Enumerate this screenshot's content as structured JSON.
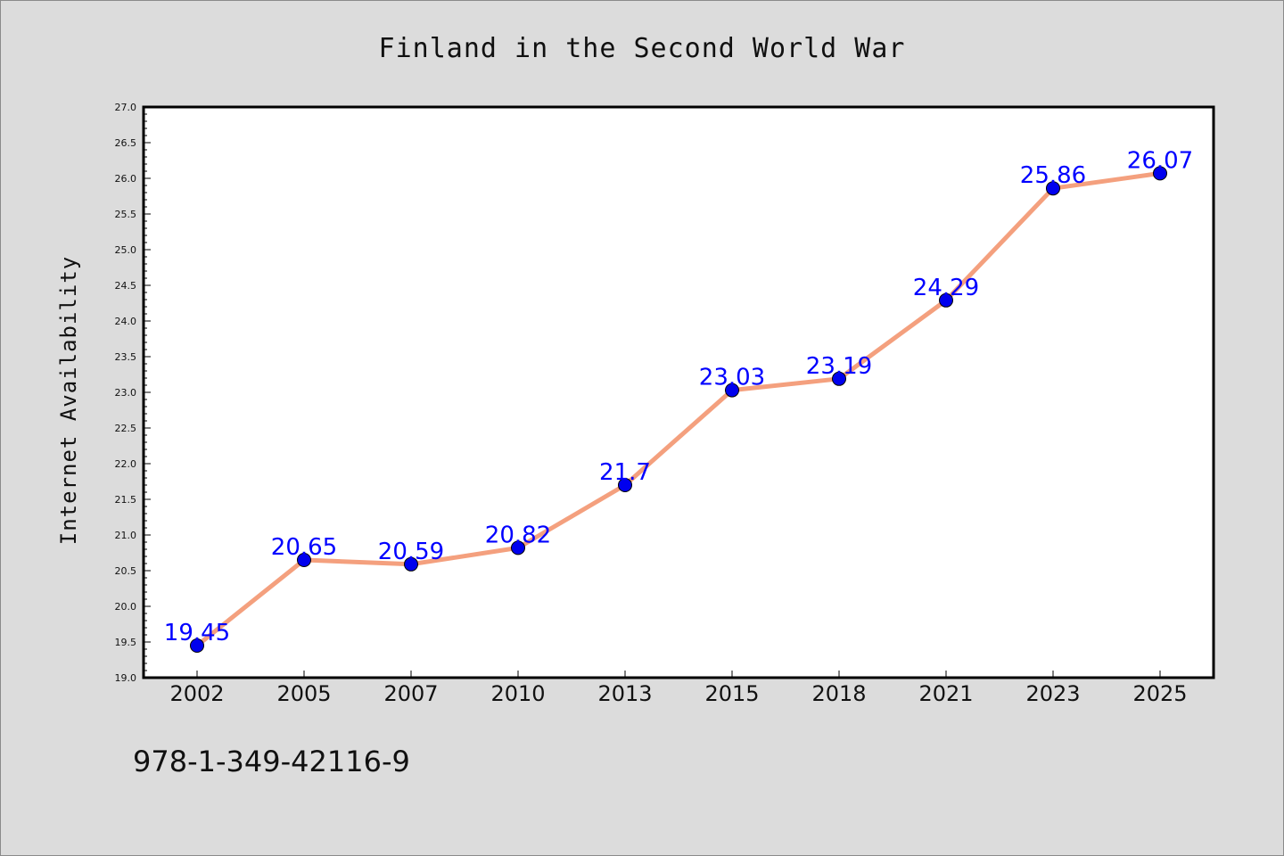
{
  "chart_data": {
    "type": "line",
    "title": "Finland in the Second World War",
    "xlabel": "",
    "ylabel": "Internet Availability",
    "categories": [
      "2002",
      "2005",
      "2007",
      "2010",
      "2013",
      "2015",
      "2018",
      "2021",
      "2023",
      "2025"
    ],
    "series": [
      {
        "values": [
          19.45,
          20.65,
          20.59,
          20.82,
          21.7,
          23.03,
          23.19,
          24.29,
          25.86,
          26.07
        ],
        "labels": [
          "19.45",
          "20.65",
          "20.59",
          "20.82",
          "21.7",
          "23.03",
          "23.19",
          "24.29",
          "25.86",
          "26.07"
        ],
        "line_color": "#f4a07e",
        "marker_color": "#0000ee",
        "label_color": "#0000ff"
      }
    ],
    "ylim": [
      19.0,
      27.0
    ],
    "yticks": [
      "19.0",
      "19.5",
      "20.0",
      "20.5",
      "21.0",
      "21.5",
      "22.0",
      "22.5",
      "23.0",
      "23.5",
      "24.0",
      "24.5",
      "25.0",
      "25.5",
      "26.0",
      "26.5",
      "27.0"
    ],
    "grid": false,
    "legend": "none"
  },
  "footer": {
    "isbn": "978-1-349-42116-9"
  },
  "colors": {
    "background": "#dcdcdc",
    "plot_background": "#ffffff",
    "axis": "#000000"
  }
}
